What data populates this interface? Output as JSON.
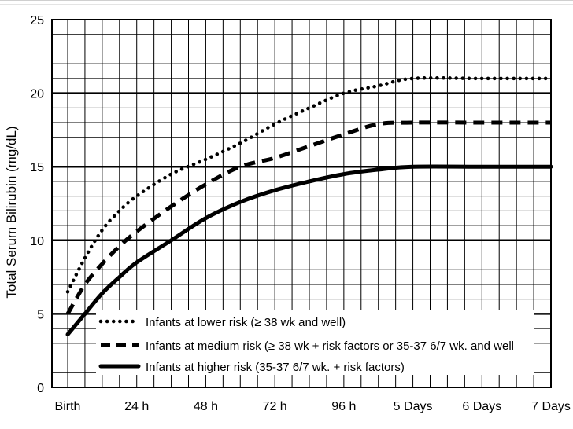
{
  "chart_data": {
    "type": "line",
    "title": "",
    "xlabel": "",
    "ylabel": "Total Serum Bilirubin (mg/dL)",
    "ylim": [
      0,
      25
    ],
    "yticks": [
      0,
      5,
      10,
      15,
      20,
      25
    ],
    "xlim_hours": [
      0,
      168
    ],
    "x_ticks": [
      {
        "hours": 0,
        "label": "Birth"
      },
      {
        "hours": 24,
        "label": "24 h"
      },
      {
        "hours": 48,
        "label": "48 h"
      },
      {
        "hours": 72,
        "label": "72 h"
      },
      {
        "hours": 96,
        "label": "96 h"
      },
      {
        "hours": 120,
        "label": "5 Days"
      },
      {
        "hours": 144,
        "label": "6 Days"
      },
      {
        "hours": 168,
        "label": "7 Days"
      }
    ],
    "grid": true,
    "legend_position": "bottom-left",
    "series": [
      {
        "name": "Infants at lower risk (≥ 38 wk and well)",
        "style": "dotted",
        "points": [
          [
            0,
            6.5
          ],
          [
            6,
            8.8
          ],
          [
            12,
            10.7
          ],
          [
            18,
            12.0
          ],
          [
            24,
            13.0
          ],
          [
            36,
            14.5
          ],
          [
            48,
            15.5
          ],
          [
            60,
            16.6
          ],
          [
            72,
            17.9
          ],
          [
            84,
            19.0
          ],
          [
            96,
            20.0
          ],
          [
            108,
            20.5
          ],
          [
            120,
            21.0
          ],
          [
            144,
            21.0
          ],
          [
            168,
            21.0
          ]
        ]
      },
      {
        "name": "Infants at medium risk (≥ 38 wk + risk factors or 35-37 6/7 wk. and well",
        "style": "dashed",
        "points": [
          [
            0,
            5.0
          ],
          [
            6,
            7.0
          ],
          [
            12,
            8.4
          ],
          [
            18,
            9.6
          ],
          [
            24,
            10.6
          ],
          [
            36,
            12.3
          ],
          [
            48,
            13.8
          ],
          [
            60,
            15.0
          ],
          [
            72,
            15.6
          ],
          [
            84,
            16.4
          ],
          [
            96,
            17.2
          ],
          [
            108,
            17.9
          ],
          [
            120,
            18.0
          ],
          [
            144,
            18.0
          ],
          [
            168,
            18.0
          ]
        ]
      },
      {
        "name": "Infants at higher risk (35-37 6/7 wk. + risk factors)",
        "style": "solid",
        "points": [
          [
            0,
            3.6
          ],
          [
            6,
            5.0
          ],
          [
            12,
            6.4
          ],
          [
            18,
            7.5
          ],
          [
            24,
            8.5
          ],
          [
            36,
            10.0
          ],
          [
            48,
            11.5
          ],
          [
            60,
            12.6
          ],
          [
            72,
            13.4
          ],
          [
            84,
            14.0
          ],
          [
            96,
            14.5
          ],
          [
            108,
            14.8
          ],
          [
            120,
            15.0
          ],
          [
            144,
            15.0
          ],
          [
            168,
            15.0
          ]
        ]
      }
    ]
  }
}
